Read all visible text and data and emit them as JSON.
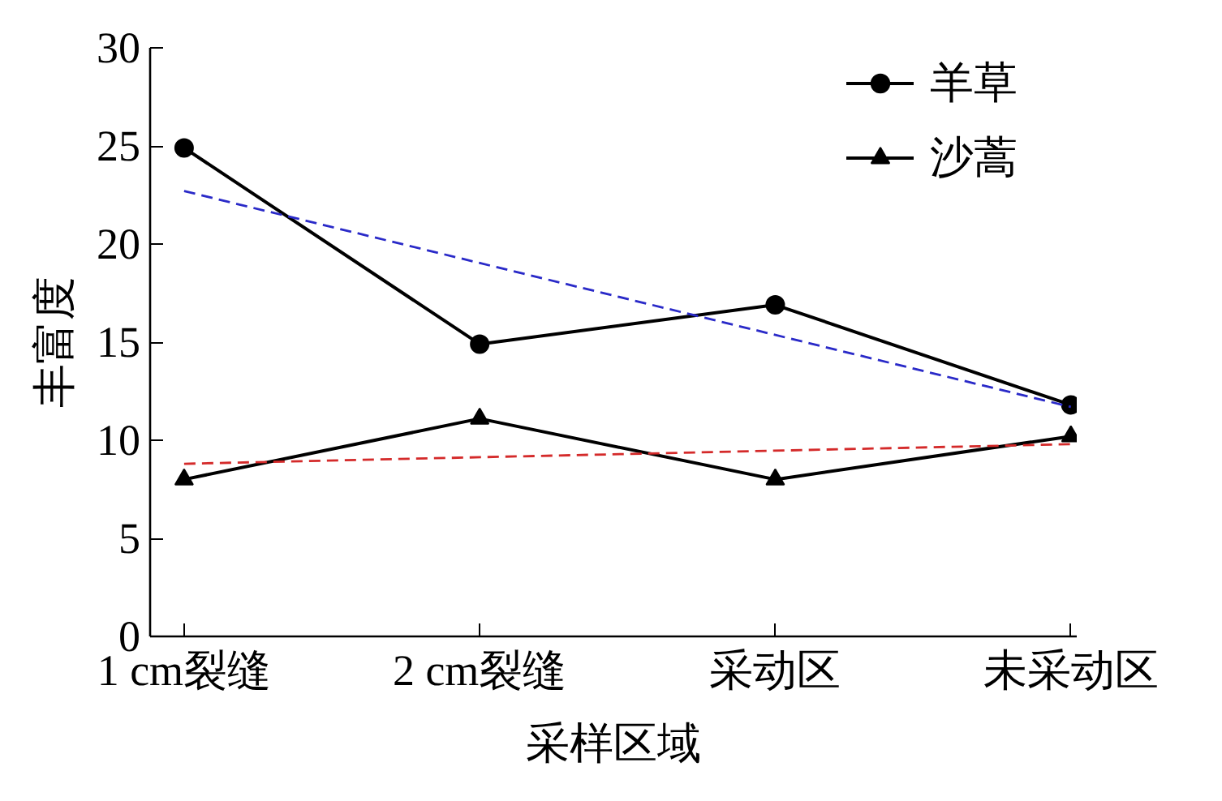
{
  "chart_data": {
    "type": "line",
    "xlabel": "采样区域",
    "ylabel": "丰富度",
    "categories": [
      "1 cm裂缝",
      "2 cm裂缝",
      "采动区",
      "未采动区"
    ],
    "ylim": [
      0,
      30
    ],
    "yticks": [
      0,
      5,
      10,
      15,
      20,
      25,
      30
    ],
    "grid": false,
    "legend": "top right",
    "line_style": "solid",
    "series": [
      {
        "name": "羊草",
        "color": "#000000",
        "marker": "circle",
        "values": [
          24.9,
          14.9,
          16.9,
          11.8
        ]
      },
      {
        "name": "沙蒿",
        "color": "#000000",
        "marker": "triangle",
        "values": [
          8.0,
          11.1,
          8.0,
          10.2
        ]
      },
      {
        "type": "line",
        "x": [
          "1 cm裂缝",
          "未采动区"
        ],
        "values": [
          22.7,
          11.7
        ],
        "color": "#2a2ac8",
        "line_style": "dashed",
        "marker": "none"
      },
      {
        "type": "line",
        "x": [
          "1 cm裂缝",
          "未采动区"
        ],
        "values": [
          8.8,
          9.8
        ],
        "color": "#d42a2a",
        "line_style": "dashed",
        "marker": "none"
      }
    ]
  }
}
